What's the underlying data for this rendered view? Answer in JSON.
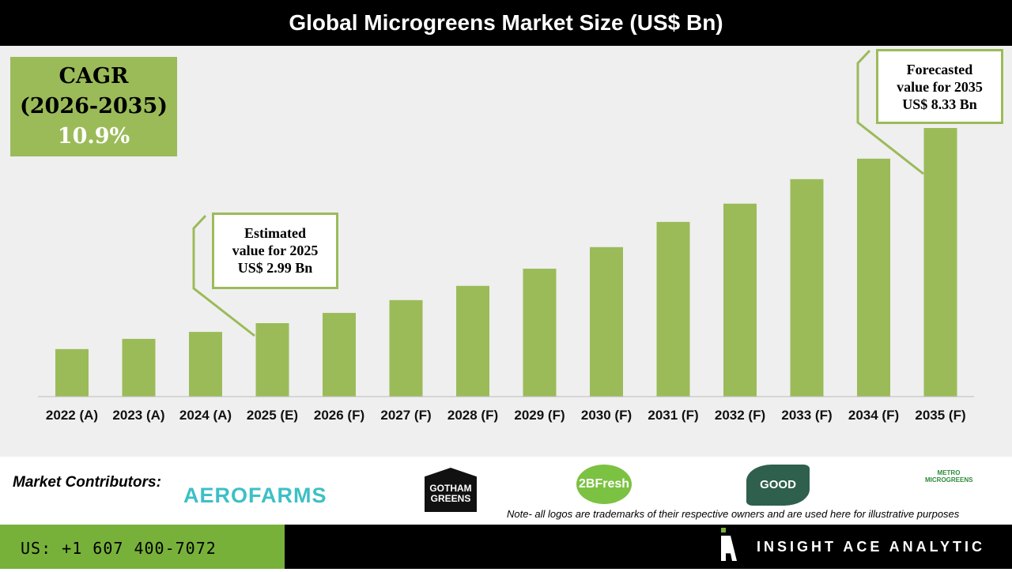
{
  "chart_data": {
    "type": "bar",
    "title": "Global Microgreens Market Size (US$ Bn)",
    "categories": [
      "2022 (A)",
      "2023 (A)",
      "2024 (A)",
      "2025 (E)",
      "2026 (F)",
      "2027 (F)",
      "2028 (F)",
      "2029 (F)",
      "2030 (F)",
      "2031 (F)",
      "2032 (F)",
      "2033 (F)",
      "2034 (F)",
      "2035 (F)"
    ],
    "values": [
      2.28,
      2.56,
      2.75,
      2.99,
      3.27,
      3.62,
      4.01,
      4.48,
      5.07,
      5.76,
      6.26,
      6.93,
      7.49,
      8.33
    ],
    "ylim": [
      0.98,
      8.33
    ],
    "bar_color": "#9bbb59",
    "grid": false
  },
  "cagr": {
    "line1": "CAGR",
    "line2": "(2026-2035)",
    "value": "10.9%"
  },
  "callout_2025": {
    "line1": "Estimated",
    "line2": "value for 2025",
    "line3": "US$ 2.99 Bn"
  },
  "callout_2035": {
    "line1": "Forecasted",
    "line2": "value for 2035",
    "line3": "US$ 8.33 Bn"
  },
  "contributors": {
    "label": "Market Contributors:",
    "logos": [
      "AEROFARMS",
      "GOTHAM GREENS",
      "2BFresh",
      "GOOD LEAF",
      "METRO MICROGREENS"
    ]
  },
  "note": "Note- all logos are trademarks of their respective owners and are used here for illustrative purposes",
  "footer": {
    "phone": "US: +1 607 400-7072",
    "brand": "INSIGHT ACE ANALYTIC"
  }
}
